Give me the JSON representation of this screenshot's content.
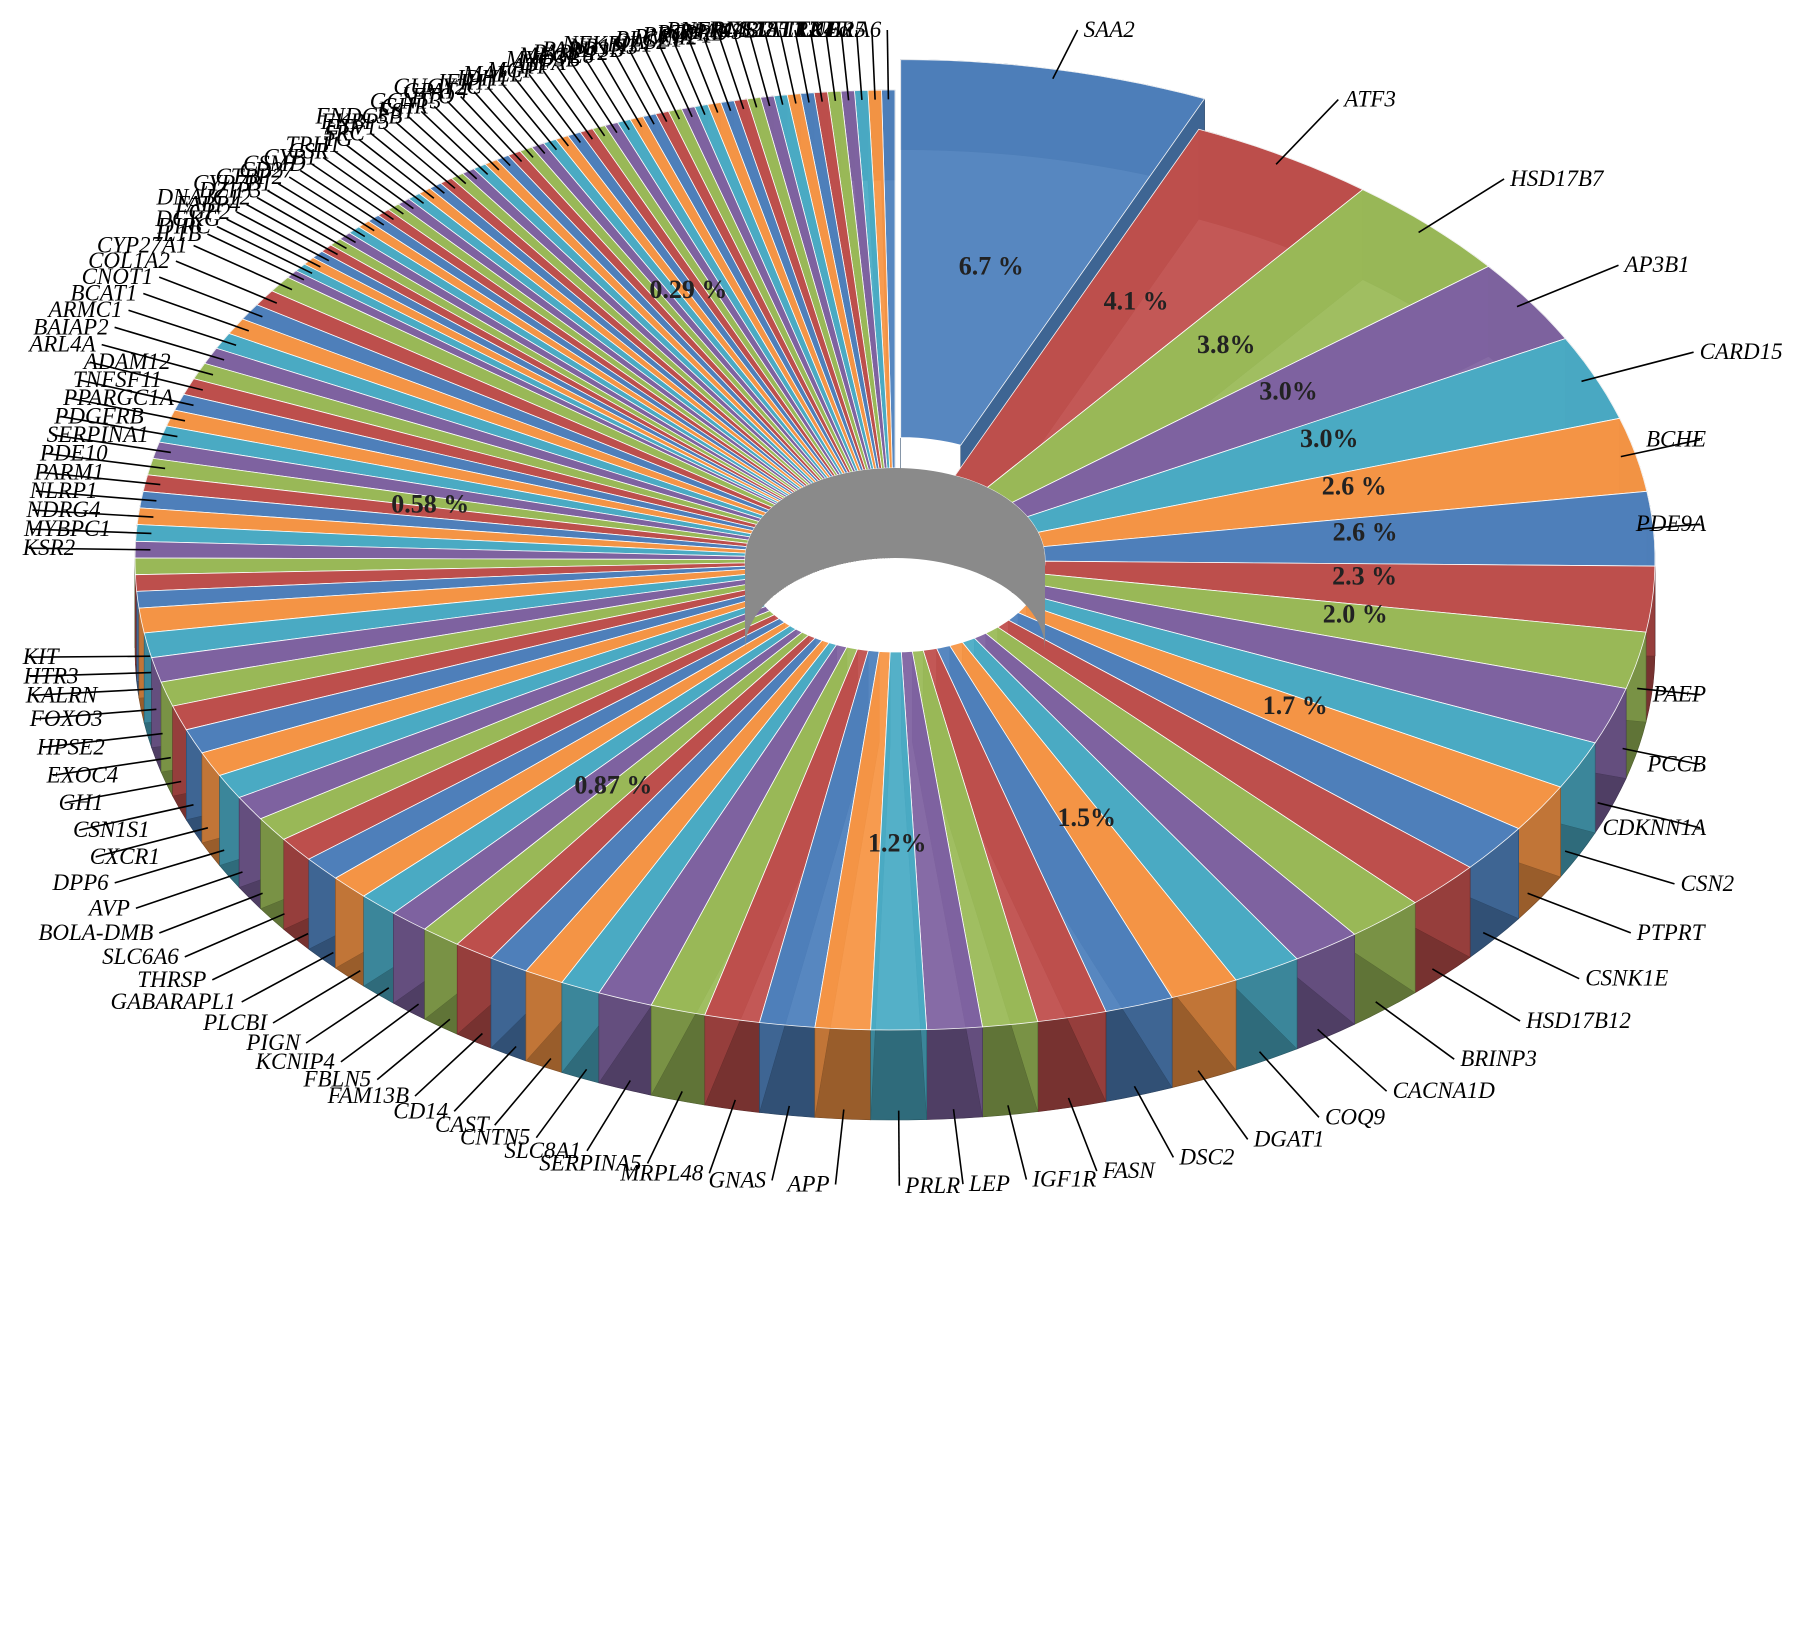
{
  "chart_data": {
    "type": "pie",
    "style": "3d-doughnut-exploded",
    "title": "",
    "legend": "none",
    "labeled_slices": [
      {
        "label": "SAA2",
        "value": 6.7,
        "color": "#4f81bd"
      },
      {
        "label": "ATF3",
        "value": 4.1,
        "color": "#c0504d"
      },
      {
        "label": "HSD17B7",
        "value": 3.8,
        "color": "#9bbb59"
      },
      {
        "label": "AP3B1",
        "value": 3.0,
        "color": "#8064a2"
      },
      {
        "label": "CARD15",
        "value": 3.0,
        "color": "#4bacc6"
      },
      {
        "label": "BCHE",
        "value": 2.6,
        "color": "#f79646"
      },
      {
        "label": "PDE9A",
        "value": 2.6,
        "color": "#4f81bd"
      },
      {
        "label": "PAEP",
        "value": 2.3,
        "color": "#c0504d"
      },
      {
        "label": "PCCB",
        "value": 2.0,
        "color": "#9bbb59"
      },
      {
        "label": "CDKNN1A",
        "value": 2.0,
        "color": "#8064a2"
      },
      {
        "label": "CSN2",
        "value": 1.7,
        "color": "#4bacc6"
      },
      {
        "label": "PTPRT",
        "value": 1.7,
        "color": "#f79646"
      },
      {
        "label": "CSNK1E",
        "value": 1.7,
        "color": "#4f81bd"
      },
      {
        "label": "HSD17B12",
        "value": 1.7,
        "color": "#c0504d"
      },
      {
        "label": "BRINP3",
        "value": 1.7,
        "color": "#9bbb59"
      },
      {
        "label": "CACNA1D",
        "value": 1.5,
        "color": "#8064a2"
      },
      {
        "label": "COQ9",
        "value": 1.5,
        "color": "#4bacc6"
      },
      {
        "label": "DGAT1",
        "value": 1.5,
        "color": "#f79646"
      },
      {
        "label": "DSC2",
        "value": 1.5,
        "color": "#4f81bd"
      },
      {
        "label": "FASN",
        "value": 1.5,
        "color": "#c0504d"
      },
      {
        "label": "IGF1R",
        "value": 1.2,
        "color": "#9bbb59"
      },
      {
        "label": "LEP",
        "value": 1.2,
        "color": "#8064a2"
      },
      {
        "label": "PRLR",
        "value": 1.2,
        "color": "#4bacc6"
      },
      {
        "label": "APP",
        "value": 1.2,
        "color": "#f79646"
      },
      {
        "label": "GNAS",
        "value": 1.2,
        "color": "#4f81bd"
      },
      {
        "label": "MRPL48",
        "value": 1.2,
        "color": "#c0504d"
      },
      {
        "label": "SERPINA5",
        "value": 1.2,
        "color": "#9bbb59"
      },
      {
        "label": "SLC8A1",
        "value": 1.2,
        "color": "#8064a2"
      },
      {
        "label": "CNTN5",
        "value": 0.87,
        "color": "#4bacc6"
      },
      {
        "label": "CAST",
        "value": 0.87,
        "color": "#f79646"
      },
      {
        "label": "CD14",
        "value": 0.87,
        "color": "#4f81bd"
      },
      {
        "label": "FAM13B",
        "value": 0.87,
        "color": "#c0504d"
      },
      {
        "label": "FBLN5",
        "value": 0.87,
        "color": "#9bbb59"
      },
      {
        "label": "KCNIP4",
        "value": 0.87,
        "color": "#8064a2"
      },
      {
        "label": "PIGN",
        "value": 0.87,
        "color": "#4bacc6"
      },
      {
        "label": "PLCBI",
        "value": 0.87,
        "color": "#f79646"
      },
      {
        "label": "GABARAPL1",
        "value": 0.87,
        "color": "#4f81bd"
      },
      {
        "label": "THRSP",
        "value": 0.87,
        "color": "#c0504d"
      },
      {
        "label": "SLC6A6",
        "value": 0.87,
        "color": "#9bbb59"
      },
      {
        "label": "BOLA-DMB",
        "value": 0.87,
        "color": "#8064a2"
      },
      {
        "label": "AVP",
        "value": 0.87,
        "color": "#4bacc6"
      },
      {
        "label": "DPP6",
        "value": 0.87,
        "color": "#f79646"
      },
      {
        "label": "CXCR1",
        "value": 0.87,
        "color": "#4f81bd"
      },
      {
        "label": "CSN1S1",
        "value": 0.87,
        "color": "#c0504d"
      },
      {
        "label": "GH1",
        "value": 0.87,
        "color": "#9bbb59"
      },
      {
        "label": "EXOC4",
        "value": 0.87,
        "color": "#8064a2"
      },
      {
        "label": "HPSE2",
        "value": 0.87,
        "color": "#4bacc6"
      },
      {
        "label": "FOXO3",
        "value": 0.87,
        "color": "#f79646"
      },
      {
        "label": "KALRN",
        "value": 0.58,
        "color": "#4f81bd"
      },
      {
        "label": "HTR3",
        "value": 0.58,
        "color": "#c0504d"
      },
      {
        "label": "KIT",
        "value": 0.58,
        "color": "#9bbb59"
      },
      {
        "label": "KSR2",
        "value": 0.58,
        "color": "#8064a2"
      },
      {
        "label": "MYBPC1",
        "value": 0.58,
        "color": "#4bacc6"
      },
      {
        "label": "NDRG4",
        "value": 0.58,
        "color": "#f79646"
      },
      {
        "label": "NLRP1",
        "value": 0.58,
        "color": "#4f81bd"
      },
      {
        "label": "PARM1",
        "value": 0.58,
        "color": "#c0504d"
      },
      {
        "label": "PDE10",
        "value": 0.58,
        "color": "#9bbb59"
      },
      {
        "label": "SERPINA1",
        "value": 0.58,
        "color": "#8064a2"
      },
      {
        "label": "PDGFRB",
        "value": 0.58,
        "color": "#4bacc6"
      },
      {
        "label": "PPARGC1A",
        "value": 0.58,
        "color": "#f79646"
      },
      {
        "label": "TNFSF11",
        "value": 0.58,
        "color": "#4f81bd"
      },
      {
        "label": "ADAM12",
        "value": 0.58,
        "color": "#c0504d"
      },
      {
        "label": "ARL4A",
        "value": 0.58,
        "color": "#9bbb59"
      },
      {
        "label": "BAIAP2",
        "value": 0.58,
        "color": "#8064a2"
      },
      {
        "label": "ARMC1",
        "value": 0.58,
        "color": "#4bacc6"
      },
      {
        "label": "BCAT1",
        "value": 0.58,
        "color": "#f79646"
      },
      {
        "label": "CNOT1",
        "value": 0.58,
        "color": "#4f81bd"
      },
      {
        "label": "COL1A2",
        "value": 0.58,
        "color": "#c0504d"
      },
      {
        "label": "CYP27A1",
        "value": 0.58,
        "color": "#9bbb59"
      },
      {
        "label": "IL1B",
        "value": 0.29,
        "color": "#8064a2"
      },
      {
        "label": "DIRC",
        "value": 0.29,
        "color": "#4bacc6"
      },
      {
        "label": "DGKG",
        "value": 0.29,
        "color": "#f79646"
      },
      {
        "label": "FGF2",
        "value": 0.29,
        "color": "#4f81bd"
      },
      {
        "label": "FABP4",
        "value": 0.29,
        "color": "#c0504d"
      },
      {
        "label": "DNAJC12",
        "value": 0.29,
        "color": "#9bbb59"
      },
      {
        "label": "DZIP3",
        "value": 0.29,
        "color": "#8064a2"
      },
      {
        "label": "CYP7B1",
        "value": 0.29,
        "color": "#4bacc6"
      },
      {
        "label": "CTBP2",
        "value": 0.29,
        "color": "#f79646"
      },
      {
        "label": "CD27",
        "value": 0.29,
        "color": "#4f81bd"
      },
      {
        "label": "CSMD",
        "value": 0.29,
        "color": "#c0504d"
      },
      {
        "label": "CYB1",
        "value": 0.29,
        "color": "#9bbb59"
      },
      {
        "label": "CSR",
        "value": 0.29,
        "color": "#8064a2"
      },
      {
        "label": "TPH1",
        "value": 0.29,
        "color": "#4bacc6"
      },
      {
        "label": "TG",
        "value": 0.29,
        "color": "#f79646"
      },
      {
        "label": "SRC",
        "value": 0.29,
        "color": "#4f81bd"
      },
      {
        "label": "ETV1",
        "value": 0.29,
        "color": "#c0504d"
      },
      {
        "label": "FKBP5",
        "value": 0.29,
        "color": "#9bbb59"
      },
      {
        "label": "FNDC3B",
        "value": 0.29,
        "color": "#8064a2"
      },
      {
        "label": "FST",
        "value": 0.29,
        "color": "#4bacc6"
      },
      {
        "label": "GHR",
        "value": 0.29,
        "color": "#f79646"
      },
      {
        "label": "GCNT3",
        "value": 0.29,
        "color": "#4f81bd"
      },
      {
        "label": "FTO",
        "value": 0.29,
        "color": "#c0504d"
      },
      {
        "label": "GPAT4",
        "value": 0.29,
        "color": "#9bbb59"
      },
      {
        "label": "GUCY2C",
        "value": 0.29,
        "color": "#8064a2"
      },
      {
        "label": "IFIH1",
        "value": 0.29,
        "color": "#4bacc6"
      },
      {
        "label": "IDH1",
        "value": 0.29,
        "color": "#f79646"
      },
      {
        "label": "MAEL",
        "value": 0.29,
        "color": "#4f81bd"
      },
      {
        "label": "MGP",
        "value": 0.29,
        "color": "#c0504d"
      },
      {
        "label": "ATF",
        "value": 0.29,
        "color": "#9bbb59"
      },
      {
        "label": "LIPA",
        "value": 0.29,
        "color": "#8064a2"
      },
      {
        "label": "MYO3B",
        "value": 0.29,
        "color": "#4bacc6"
      },
      {
        "label": "MFGE8",
        "value": 0.29,
        "color": "#f79646"
      },
      {
        "label": "PARP12",
        "value": 0.29,
        "color": "#4f81bd"
      },
      {
        "label": "PARD3B",
        "value": 0.29,
        "color": "#c0504d"
      },
      {
        "label": "NR1H3",
        "value": 0.29,
        "color": "#9bbb59"
      },
      {
        "label": "NFKBIL1",
        "value": 0.29,
        "color": "#8064a2"
      },
      {
        "label": "OAS2",
        "value": 0.29,
        "color": "#4bacc6"
      },
      {
        "label": "PLCE1",
        "value": 0.29,
        "color": "#f79646"
      },
      {
        "label": "PMM2",
        "value": 0.29,
        "color": "#4f81bd"
      },
      {
        "label": "PROP1",
        "value": 0.29,
        "color": "#c0504d"
      },
      {
        "label": "PTPRD",
        "value": 0.29,
        "color": "#9bbb59"
      },
      {
        "label": "RPAP3",
        "value": 0.29,
        "color": "#8064a2"
      },
      {
        "label": "RNF144B",
        "value": 0.29,
        "color": "#4bacc6"
      },
      {
        "label": "RGS22",
        "value": 0.29,
        "color": "#f79646"
      },
      {
        "label": "RNF185",
        "value": 0.29,
        "color": "#4f81bd"
      },
      {
        "label": "STAT1",
        "value": 0.29,
        "color": "#c0504d"
      },
      {
        "label": "TLR2",
        "value": 0.29,
        "color": "#9bbb59"
      },
      {
        "label": "TLR4",
        "value": 0.29,
        "color": "#8064a2"
      },
      {
        "label": "TNFα",
        "value": 0.29,
        "color": "#4bacc6"
      },
      {
        "label": "UBR5",
        "value": 0.29,
        "color": "#f79646"
      },
      {
        "label": "UGT1A6",
        "value": 0.29,
        "color": "#4f81bd"
      }
    ],
    "percent_labels": [
      "6.7 %",
      "4.1 %",
      "3.8%",
      "3.0%",
      "3.0%",
      "2.6 %",
      "2.6 %",
      "2.3 %",
      "2.0 %",
      "1.7 %",
      "1.5%",
      "1.2%",
      "0.87 %",
      "0.58 %",
      "0.29 %"
    ],
    "palette": [
      "#4f81bd",
      "#c0504d",
      "#9bbb59",
      "#8064a2",
      "#4bacc6",
      "#f79646"
    ]
  }
}
